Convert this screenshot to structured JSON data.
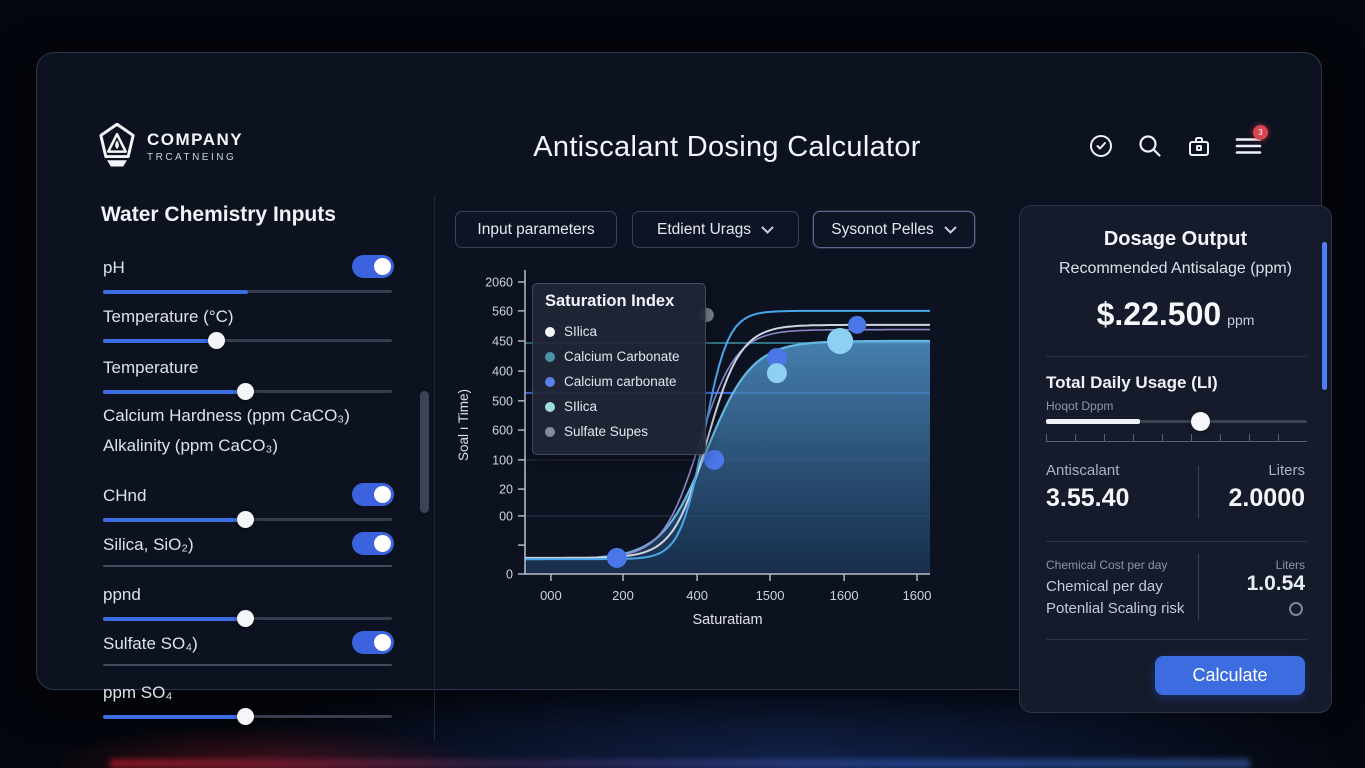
{
  "header": {
    "logo_title": "COMPANY",
    "logo_subtitle": "TRCATNEING",
    "title": "Antiscalant Dosing Calculator",
    "menu_badge": "3",
    "icons": [
      "history-clock-icon",
      "search-icon",
      "briefcase-icon",
      "menu-icon"
    ]
  },
  "sidebar": {
    "title": "Water Chemistry Inputs",
    "controls": [
      {
        "label": "pH",
        "toggle": true,
        "slider": {
          "fill_pct": 50,
          "thumb_pct": null
        }
      },
      {
        "label": "Temperature (°C)",
        "slider": {
          "fill_pct": 39,
          "thumb_pct": 39
        }
      },
      {
        "label": "Temperature",
        "slider": {
          "fill_pct": 49,
          "thumb_pct": 49
        }
      },
      {
        "label": "Calcium Hardness (ppm CaCO₃)"
      },
      {
        "label": "Alkalinity (ppm CaCO₃)"
      },
      {
        "label": "CHnd",
        "toggle": true,
        "slider": {
          "fill_pct": 49,
          "thumb_pct": 49
        }
      },
      {
        "label": "Silica, SiO₂)",
        "toggle": true,
        "divider": true
      },
      {
        "label": "ppnd",
        "slider": {
          "fill_pct": 49,
          "thumb_pct": 49
        }
      },
      {
        "label": "Sulfate SO₄)",
        "toggle": true,
        "divider": true
      },
      {
        "label": "ppm SO₄",
        "slider": {
          "fill_pct": 49,
          "thumb_pct": 49
        }
      }
    ]
  },
  "toolbar": {
    "tab": "Input parameters",
    "dropdown1": "Etdient Urags",
    "dropdown2": "Sysonot Pelles"
  },
  "chart_data": {
    "type": "area",
    "legend_title": "Saturation Index",
    "legend": [
      {
        "label": "SIlica",
        "color": "#f2f5f9"
      },
      {
        "label": "Calcium Carbonate",
        "color": "#4d93a8"
      },
      {
        "label": "Calcium carbonate",
        "color": "#5b7de8"
      },
      {
        "label": "SIlica",
        "color": "#9fdce0"
      },
      {
        "label": "Sulfate Supes",
        "color": "#858b98"
      }
    ],
    "xlabel": "Saturatiam",
    "ylabel": "Soal ı Time)",
    "x_tick_labels": [
      "000",
      "200",
      "400",
      "1500",
      "1600",
      "1600"
    ],
    "y_tick_labels": [
      "2060",
      "560",
      "450",
      "400",
      "500",
      "600",
      "100",
      "20",
      "00",
      "",
      "0"
    ],
    "curves": [
      {
        "name": "area-sigmoid",
        "color": "#66b8e0",
        "width": 2.2,
        "low": 0.95,
        "high": 0.218,
        "mid": 0.449,
        "k": 18,
        "fill": true
      },
      {
        "name": "purple-sigmoid",
        "color": "#8d85c8",
        "width": 1.6,
        "low": 0.948,
        "high": 0.18,
        "mid": 0.43,
        "k": 22
      },
      {
        "name": "white-sigmoid",
        "color": "#cdd5e2",
        "width": 2,
        "low": 0.946,
        "high": 0.164,
        "mid": 0.449,
        "k": 24
      },
      {
        "name": "cyan-sigmoid",
        "color": "#4aa6e8",
        "width": 2,
        "low": 0.95,
        "high": 0.117,
        "mid": 0.442,
        "k": 34
      }
    ],
    "ref_lines": [
      {
        "fy": 0.225,
        "color": "#3f8fa6",
        "w": 1.5
      },
      {
        "fy": 0.392,
        "color": "#3f6fe0",
        "w": 2
      }
    ],
    "gridlines_fy": [
      0.617,
      0.805
    ],
    "markers": [
      {
        "fx": 0.227,
        "fy": 0.946,
        "r": 10,
        "color": "#4a77e8"
      },
      {
        "fx": 0.467,
        "fy": 0.617,
        "r": 10,
        "color": "#4a77e8"
      },
      {
        "fx": 0.622,
        "fy": 0.275,
        "r": 10,
        "color": "#4a77e8"
      },
      {
        "fx": 0.82,
        "fy": 0.164,
        "r": 9,
        "color": "#4a77e8"
      },
      {
        "fx": 0.622,
        "fy": 0.326,
        "r": 10,
        "color": "#8ed0f2"
      },
      {
        "fx": 0.778,
        "fy": 0.218,
        "r": 13,
        "color": "#8ed0f2"
      },
      {
        "fx": 0.449,
        "fy": 0.131,
        "r": 7,
        "color": "#7c828e"
      }
    ]
  },
  "output": {
    "title": "Dosage Output",
    "subtitle": "Recommended Antisalage (ppm)",
    "value": "$.22.500",
    "value_unit": "ppm",
    "usage_title": "Total Daily Usage (LI)",
    "usage_sub": "Hoqot Dppm",
    "usage_slider": {
      "fill_pct": 36,
      "thumb_pct": 59
    },
    "stat1_label": "Antiscalant",
    "stat1_value": "3.55.40",
    "stat2_label": "Liters",
    "stat2_value": "2.0000",
    "cost_label1": "Chemical Cost per day",
    "cost_label2": "Chemical per day",
    "cost_label3": "Potenlial Scaling risk",
    "cost_unit": "Liters",
    "cost_value": "1.0.54",
    "button_label": "Calculate"
  }
}
